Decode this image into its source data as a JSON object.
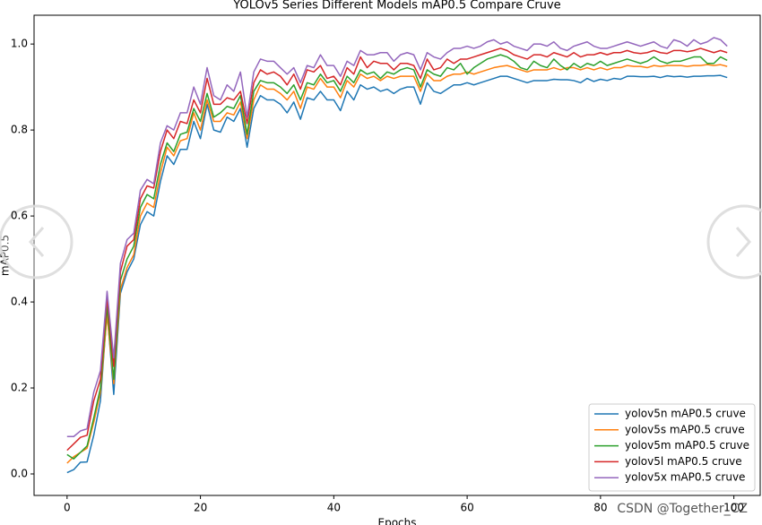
{
  "chart_data": {
    "type": "line",
    "title": "YOLOv5 Series Different Models mAP0.5 Compare Cruve",
    "xlabel": "Epochs",
    "ylabel": "mAP0.5",
    "watermark": "CSDN @Together_CZ",
    "x": [
      0,
      1,
      2,
      3,
      4,
      5,
      6,
      7,
      8,
      9,
      10,
      11,
      12,
      13,
      14,
      15,
      16,
      17,
      18,
      19,
      20,
      21,
      22,
      23,
      24,
      25,
      26,
      27,
      28,
      29,
      30,
      31,
      32,
      33,
      34,
      35,
      36,
      37,
      38,
      39,
      40,
      41,
      42,
      43,
      44,
      45,
      46,
      47,
      48,
      49,
      50,
      51,
      52,
      53,
      54,
      55,
      56,
      57,
      58,
      59,
      60,
      61,
      62,
      63,
      64,
      65,
      66,
      67,
      68,
      69,
      70,
      71,
      72,
      73,
      74,
      75,
      76,
      77,
      78,
      79,
      80,
      81,
      82,
      83,
      84,
      85,
      86,
      87,
      88,
      89,
      90,
      91,
      92,
      93,
      94,
      95,
      96,
      97,
      98,
      99
    ],
    "series": [
      {
        "name": "yolov5n mAP0.5 cruve",
        "color": "#1f77b4",
        "values": [
          0.003,
          0.01,
          0.027,
          0.028,
          0.09,
          0.17,
          0.38,
          0.185,
          0.42,
          0.47,
          0.5,
          0.58,
          0.61,
          0.6,
          0.68,
          0.74,
          0.72,
          0.755,
          0.755,
          0.82,
          0.78,
          0.86,
          0.8,
          0.795,
          0.83,
          0.82,
          0.85,
          0.76,
          0.85,
          0.88,
          0.87,
          0.87,
          0.86,
          0.84,
          0.865,
          0.825,
          0.875,
          0.87,
          0.89,
          0.87,
          0.87,
          0.845,
          0.89,
          0.87,
          0.905,
          0.895,
          0.9,
          0.89,
          0.895,
          0.885,
          0.895,
          0.9,
          0.9,
          0.86,
          0.91,
          0.89,
          0.885,
          0.895,
          0.905,
          0.905,
          0.91,
          0.905,
          0.91,
          0.915,
          0.92,
          0.925,
          0.925,
          0.92,
          0.915,
          0.91,
          0.915,
          0.915,
          0.915,
          0.918,
          0.917,
          0.917,
          0.915,
          0.91,
          0.92,
          0.913,
          0.918,
          0.915,
          0.92,
          0.918,
          0.925,
          0.925,
          0.924,
          0.924,
          0.925,
          0.922,
          0.926,
          0.924,
          0.925,
          0.923,
          0.925,
          0.925,
          0.926,
          0.926,
          0.927,
          0.922
        ]
      },
      {
        "name": "yolov5s mAP0.5 cruve",
        "color": "#ff7f0e",
        "values": [
          0.025,
          0.04,
          0.05,
          0.06,
          0.12,
          0.19,
          0.37,
          0.21,
          0.43,
          0.48,
          0.51,
          0.6,
          0.63,
          0.62,
          0.7,
          0.76,
          0.74,
          0.775,
          0.78,
          0.84,
          0.8,
          0.87,
          0.82,
          0.82,
          0.84,
          0.835,
          0.865,
          0.78,
          0.87,
          0.905,
          0.895,
          0.895,
          0.885,
          0.87,
          0.89,
          0.85,
          0.9,
          0.895,
          0.92,
          0.9,
          0.9,
          0.875,
          0.915,
          0.9,
          0.93,
          0.92,
          0.925,
          0.915,
          0.925,
          0.92,
          0.925,
          0.925,
          0.925,
          0.89,
          0.93,
          0.915,
          0.915,
          0.925,
          0.93,
          0.93,
          0.935,
          0.93,
          0.935,
          0.94,
          0.945,
          0.948,
          0.95,
          0.945,
          0.94,
          0.935,
          0.94,
          0.94,
          0.94,
          0.945,
          0.94,
          0.945,
          0.945,
          0.94,
          0.945,
          0.94,
          0.945,
          0.94,
          0.945,
          0.945,
          0.95,
          0.948,
          0.948,
          0.945,
          0.95,
          0.948,
          0.95,
          0.95,
          0.95,
          0.948,
          0.95,
          0.95,
          0.952,
          0.95,
          0.952,
          0.948
        ]
      },
      {
        "name": "yolov5m mAP0.5 cruve",
        "color": "#2ca02c",
        "values": [
          0.045,
          0.035,
          0.05,
          0.065,
          0.13,
          0.2,
          0.39,
          0.22,
          0.45,
          0.5,
          0.53,
          0.62,
          0.65,
          0.64,
          0.72,
          0.77,
          0.75,
          0.79,
          0.795,
          0.85,
          0.82,
          0.885,
          0.83,
          0.84,
          0.855,
          0.85,
          0.88,
          0.79,
          0.89,
          0.915,
          0.91,
          0.91,
          0.9,
          0.885,
          0.905,
          0.87,
          0.91,
          0.905,
          0.93,
          0.91,
          0.915,
          0.89,
          0.925,
          0.91,
          0.94,
          0.93,
          0.935,
          0.92,
          0.935,
          0.93,
          0.94,
          0.945,
          0.94,
          0.9,
          0.94,
          0.93,
          0.925,
          0.945,
          0.94,
          0.955,
          0.93,
          0.945,
          0.955,
          0.965,
          0.97,
          0.975,
          0.97,
          0.96,
          0.945,
          0.94,
          0.96,
          0.95,
          0.945,
          0.965,
          0.95,
          0.94,
          0.955,
          0.945,
          0.955,
          0.95,
          0.96,
          0.95,
          0.955,
          0.96,
          0.965,
          0.96,
          0.955,
          0.96,
          0.97,
          0.96,
          0.955,
          0.96,
          0.96,
          0.965,
          0.97,
          0.97,
          0.955,
          0.955,
          0.97,
          0.962
        ]
      },
      {
        "name": "yolov5l mAP0.5 cruve",
        "color": "#d62728",
        "values": [
          0.055,
          0.07,
          0.085,
          0.09,
          0.17,
          0.22,
          0.41,
          0.25,
          0.47,
          0.53,
          0.545,
          0.64,
          0.67,
          0.665,
          0.75,
          0.8,
          0.78,
          0.82,
          0.815,
          0.87,
          0.84,
          0.92,
          0.86,
          0.86,
          0.875,
          0.87,
          0.89,
          0.815,
          0.91,
          0.94,
          0.93,
          0.935,
          0.925,
          0.905,
          0.93,
          0.895,
          0.94,
          0.935,
          0.95,
          0.92,
          0.925,
          0.905,
          0.945,
          0.93,
          0.97,
          0.945,
          0.96,
          0.955,
          0.955,
          0.94,
          0.955,
          0.955,
          0.95,
          0.92,
          0.965,
          0.94,
          0.945,
          0.965,
          0.955,
          0.965,
          0.965,
          0.97,
          0.975,
          0.98,
          0.985,
          0.99,
          0.985,
          0.975,
          0.97,
          0.965,
          0.975,
          0.975,
          0.97,
          0.98,
          0.975,
          0.97,
          0.98,
          0.97,
          0.975,
          0.975,
          0.98,
          0.975,
          0.98,
          0.98,
          0.985,
          0.98,
          0.978,
          0.98,
          0.985,
          0.98,
          0.978,
          0.985,
          0.985,
          0.982,
          0.985,
          0.99,
          0.985,
          0.98,
          0.985,
          0.98
        ]
      },
      {
        "name": "yolov5x mAP0.5 cruve",
        "color": "#9467bd",
        "values": [
          0.087,
          0.087,
          0.1,
          0.105,
          0.19,
          0.24,
          0.425,
          0.27,
          0.49,
          0.545,
          0.56,
          0.66,
          0.685,
          0.675,
          0.77,
          0.81,
          0.8,
          0.84,
          0.84,
          0.9,
          0.86,
          0.945,
          0.88,
          0.87,
          0.905,
          0.89,
          0.935,
          0.83,
          0.935,
          0.965,
          0.96,
          0.96,
          0.945,
          0.93,
          0.945,
          0.91,
          0.95,
          0.945,
          0.975,
          0.95,
          0.95,
          0.925,
          0.96,
          0.95,
          0.985,
          0.975,
          0.975,
          0.98,
          0.98,
          0.96,
          0.975,
          0.98,
          0.975,
          0.94,
          0.98,
          0.97,
          0.965,
          0.98,
          0.99,
          0.99,
          0.995,
          0.99,
          0.995,
          1.005,
          1.01,
          1.0,
          1.005,
          0.995,
          0.99,
          0.985,
          1.0,
          1.0,
          0.995,
          1.005,
          0.99,
          0.985,
          0.995,
          1.0,
          1.005,
          0.995,
          0.99,
          0.99,
          0.995,
          1.0,
          1.005,
          1.0,
          0.995,
          1.0,
          1.005,
          0.995,
          0.99,
          1.01,
          1.005,
          0.995,
          1.01,
          1.0,
          1.005,
          1.015,
          1.01,
          0.995
        ]
      }
    ],
    "xlim": [
      -4.95,
      103.95
    ],
    "ylim": [
      -0.05,
      1.067
    ],
    "xticks": [
      0,
      20,
      40,
      60,
      80,
      100
    ],
    "yticks": [
      {
        "value": 0,
        "label": "0.0"
      },
      0.2,
      0.4,
      0.6,
      0.8,
      {
        "value": 1,
        "label": "1.0"
      }
    ],
    "legend": "lower right",
    "grid": false
  }
}
